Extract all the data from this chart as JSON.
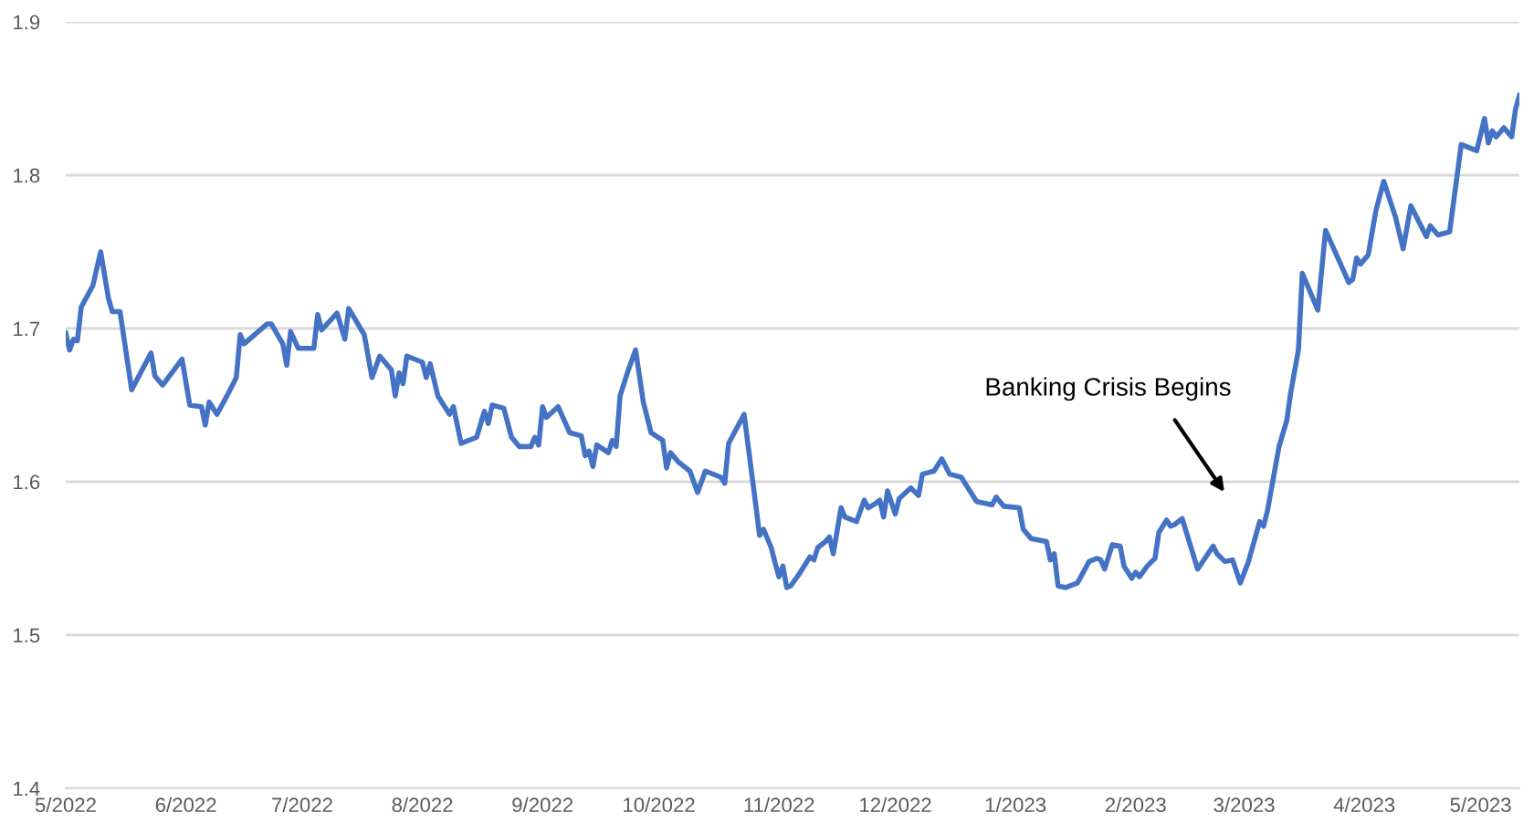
{
  "chart_data": {
    "type": "line",
    "xlim": [
      "2022-05-01",
      "2023-05-11"
    ],
    "ylim": [
      1.4,
      1.9
    ],
    "yticks": [
      1.4,
      1.5,
      1.6,
      1.7,
      1.8,
      1.9
    ],
    "xticks": [
      {
        "value": "2022-05-01",
        "label": "5/2022"
      },
      {
        "value": "2022-06-01",
        "label": "6/2022"
      },
      {
        "value": "2022-07-01",
        "label": "7/2022"
      },
      {
        "value": "2022-08-01",
        "label": "8/2022"
      },
      {
        "value": "2022-09-01",
        "label": "9/2022"
      },
      {
        "value": "2022-10-01",
        "label": "10/2022"
      },
      {
        "value": "2022-11-01",
        "label": "11/2022"
      },
      {
        "value": "2022-12-01",
        "label": "12/2022"
      },
      {
        "value": "2023-01-01",
        "label": "1/2023"
      },
      {
        "value": "2023-02-01",
        "label": "2/2023"
      },
      {
        "value": "2023-03-01",
        "label": "3/2023"
      },
      {
        "value": "2023-04-01",
        "label": "4/2023"
      },
      {
        "value": "2023-05-01",
        "label": "5/2023"
      }
    ],
    "grid": "y",
    "marker": "none",
    "line_style": "solid",
    "annotations": [
      "Banking Crisis Begins"
    ],
    "series": [
      {
        "color": "#4472c4",
        "x": [
          "2022-05-01",
          "2022-05-02",
          "2022-05-03",
          "2022-05-04",
          "2022-05-05",
          "2022-05-08",
          "2022-05-10",
          "2022-05-12",
          "2022-05-13",
          "2022-05-15",
          "2022-05-18",
          "2022-05-23",
          "2022-05-24",
          "2022-05-26",
          "2022-05-31",
          "2022-06-02",
          "2022-06-05",
          "2022-06-06",
          "2022-06-07",
          "2022-06-09",
          "2022-06-12",
          "2022-06-14",
          "2022-06-15",
          "2022-06-16",
          "2022-06-22",
          "2022-06-23",
          "2022-06-26",
          "2022-06-27",
          "2022-06-28",
          "2022-06-30",
          "2022-07-04",
          "2022-07-05",
          "2022-07-06",
          "2022-07-10",
          "2022-07-12",
          "2022-07-13",
          "2022-07-17",
          "2022-07-19",
          "2022-07-21",
          "2022-07-24",
          "2022-07-25",
          "2022-07-26",
          "2022-07-27",
          "2022-07-28",
          "2022-08-01",
          "2022-08-02",
          "2022-08-03",
          "2022-08-05",
          "2022-08-08",
          "2022-08-09",
          "2022-08-11",
          "2022-08-15",
          "2022-08-17",
          "2022-08-18",
          "2022-08-19",
          "2022-08-22",
          "2022-08-24",
          "2022-08-26",
          "2022-08-29",
          "2022-08-30",
          "2022-08-31",
          "2022-09-01",
          "2022-09-02",
          "2022-09-05",
          "2022-09-08",
          "2022-09-11",
          "2022-09-12",
          "2022-09-13",
          "2022-09-14",
          "2022-09-15",
          "2022-09-18",
          "2022-09-19",
          "2022-09-20",
          "2022-09-21",
          "2022-09-23",
          "2022-09-25",
          "2022-09-27",
          "2022-09-29",
          "2022-10-02",
          "2022-10-03",
          "2022-10-04",
          "2022-10-06",
          "2022-10-09",
          "2022-10-11",
          "2022-10-13",
          "2022-10-17",
          "2022-10-18",
          "2022-10-19",
          "2022-10-23",
          "2022-10-26",
          "2022-10-27",
          "2022-10-28",
          "2022-10-30",
          "2022-10-31",
          "2022-11-01",
          "2022-11-02",
          "2022-11-03",
          "2022-11-04",
          "2022-11-06",
          "2022-11-09",
          "2022-11-10",
          "2022-11-11",
          "2022-11-13",
          "2022-11-14",
          "2022-11-15",
          "2022-11-17",
          "2022-11-18",
          "2022-11-21",
          "2022-11-23",
          "2022-11-24",
          "2022-11-26",
          "2022-11-27",
          "2022-11-28",
          "2022-11-29",
          "2022-12-01",
          "2022-12-02",
          "2022-12-05",
          "2022-12-07",
          "2022-12-08",
          "2022-12-11",
          "2022-12-13",
          "2022-12-15",
          "2022-12-18",
          "2022-12-22",
          "2022-12-26",
          "2022-12-27",
          "2022-12-29",
          "2023-01-02",
          "2023-01-03",
          "2023-01-05",
          "2023-01-09",
          "2023-01-10",
          "2023-01-11",
          "2023-01-12",
          "2023-01-14",
          "2023-01-17",
          "2023-01-20",
          "2023-01-22",
          "2023-01-23",
          "2023-01-24",
          "2023-01-26",
          "2023-01-28",
          "2023-01-29",
          "2023-01-31",
          "2023-02-01",
          "2023-02-02",
          "2023-02-04",
          "2023-02-06",
          "2023-02-07",
          "2023-02-09",
          "2023-02-10",
          "2023-02-11",
          "2023-02-13",
          "2023-02-17",
          "2023-02-21",
          "2023-02-22",
          "2023-02-24",
          "2023-02-26",
          "2023-02-28",
          "2023-03-02",
          "2023-03-05",
          "2023-03-06",
          "2023-03-07",
          "2023-03-10",
          "2023-03-12",
          "2023-03-13",
          "2023-03-15",
          "2023-03-16",
          "2023-03-20",
          "2023-03-22",
          "2023-03-28",
          "2023-03-29",
          "2023-03-30",
          "2023-03-31",
          "2023-04-02",
          "2023-04-04",
          "2023-04-06",
          "2023-04-09",
          "2023-04-11",
          "2023-04-13",
          "2023-04-17",
          "2023-04-18",
          "2023-04-20",
          "2023-04-23",
          "2023-04-26",
          "2023-04-30",
          "2023-05-02",
          "2023-05-03",
          "2023-05-04",
          "2023-05-05",
          "2023-05-07",
          "2023-05-09",
          "2023-05-10",
          "2023-05-11"
        ],
        "values": [
          1.697,
          1.686,
          1.693,
          1.692,
          1.714,
          1.728,
          1.75,
          1.72,
          1.711,
          1.711,
          1.66,
          1.684,
          1.669,
          1.663,
          1.68,
          1.65,
          1.649,
          1.637,
          1.652,
          1.644,
          1.658,
          1.668,
          1.696,
          1.69,
          1.703,
          1.703,
          1.69,
          1.676,
          1.698,
          1.687,
          1.687,
          1.709,
          1.699,
          1.71,
          1.693,
          1.713,
          1.696,
          1.668,
          1.682,
          1.673,
          1.656,
          1.671,
          1.664,
          1.682,
          1.678,
          1.668,
          1.677,
          1.656,
          1.644,
          1.649,
          1.625,
          1.629,
          1.646,
          1.638,
          1.65,
          1.648,
          1.629,
          1.623,
          1.623,
          1.629,
          1.624,
          1.649,
          1.642,
          1.649,
          1.632,
          1.63,
          1.617,
          1.62,
          1.61,
          1.624,
          1.619,
          1.627,
          1.623,
          1.656,
          1.672,
          1.686,
          1.652,
          1.632,
          1.627,
          1.609,
          1.619,
          1.613,
          1.607,
          1.593,
          1.607,
          1.603,
          1.599,
          1.625,
          1.644,
          1.585,
          1.565,
          1.569,
          1.557,
          1.547,
          1.538,
          1.545,
          1.531,
          1.532,
          1.539,
          1.551,
          1.549,
          1.557,
          1.561,
          1.564,
          1.553,
          1.583,
          1.577,
          1.574,
          1.588,
          1.583,
          1.586,
          1.588,
          1.577,
          1.594,
          1.579,
          1.589,
          1.596,
          1.591,
          1.605,
          1.607,
          1.615,
          1.605,
          1.603,
          1.587,
          1.585,
          1.59,
          1.584,
          1.583,
          1.569,
          1.563,
          1.561,
          1.549,
          1.553,
          1.532,
          1.531,
          1.534,
          1.548,
          1.55,
          1.549,
          1.543,
          1.559,
          1.558,
          1.545,
          1.537,
          1.541,
          1.538,
          1.545,
          1.55,
          1.567,
          1.575,
          1.571,
          1.572,
          1.576,
          1.543,
          1.558,
          1.553,
          1.548,
          1.549,
          1.534,
          1.547,
          1.574,
          1.571,
          1.581,
          1.623,
          1.64,
          1.658,
          1.686,
          1.736,
          1.712,
          1.764,
          1.73,
          1.732,
          1.746,
          1.742,
          1.748,
          1.777,
          1.796,
          1.773,
          1.752,
          1.78,
          1.76,
          1.767,
          1.761,
          1.763,
          1.82,
          1.816,
          1.837,
          1.821,
          1.829,
          1.825,
          1.831,
          1.825,
          1.843,
          1.852
        ]
      }
    ]
  }
}
